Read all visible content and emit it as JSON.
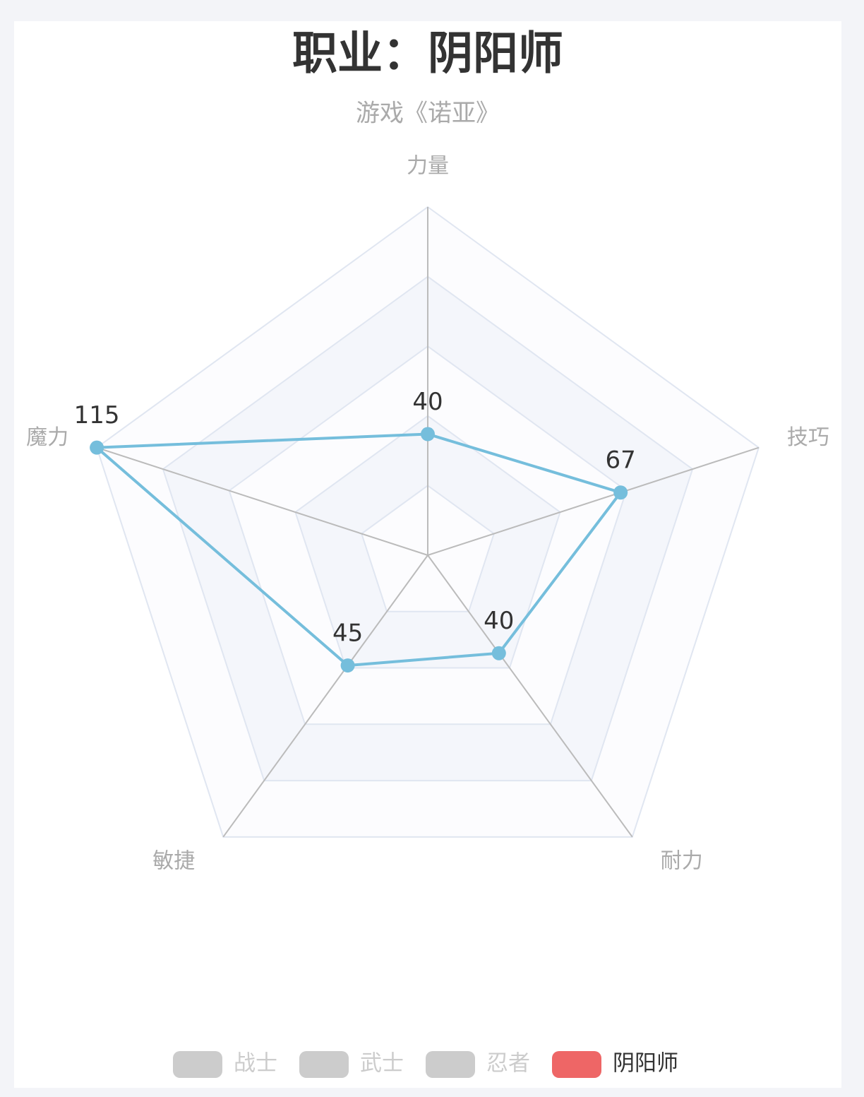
{
  "chart_data": {
    "type": "radar",
    "title": "职业：阴阳师",
    "subtitle": "游戏《诺亚》",
    "indicators": [
      "力量",
      "技巧",
      "耐力",
      "敏捷",
      "魔力"
    ],
    "max": 115,
    "series": [
      {
        "name": "战士",
        "color": "#cccccc",
        "hidden": true
      },
      {
        "name": "武士",
        "color": "#cccccc",
        "hidden": true
      },
      {
        "name": "忍者",
        "color": "#cccccc",
        "hidden": true
      },
      {
        "name": "阴阳师",
        "color": "#ee6666",
        "line_color": "#75bedc",
        "values": [
          40,
          67,
          40,
          45,
          115
        ]
      }
    ],
    "legend": "bottom"
  }
}
